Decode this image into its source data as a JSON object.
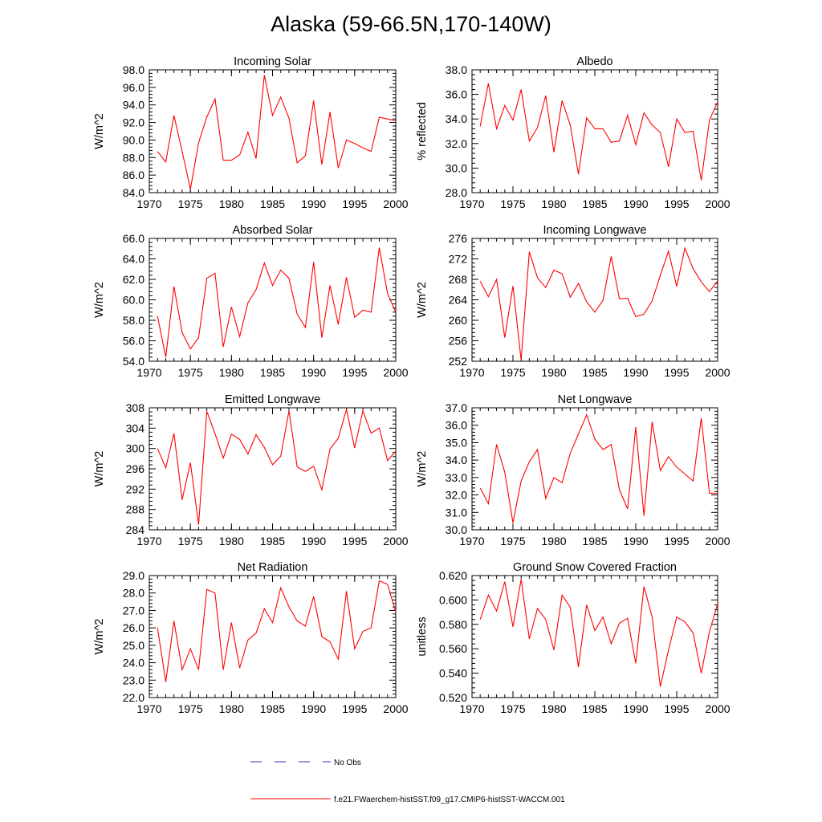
{
  "figure": {
    "title": "Alaska (59-66.5N,170-140W)"
  },
  "legend": {
    "items": [
      {
        "label": "No Obs",
        "color": "#3333cc",
        "style": "dashed"
      },
      {
        "label": "f.e21.FWaerchem-histSST.f09_g17.CMIP6-histSST-WACCM.001",
        "color": "#ff0000",
        "style": "solid"
      }
    ]
  },
  "chart_data": [
    {
      "type": "line",
      "title": "Incoming Solar",
      "xlabel": "",
      "ylabel": "W/m^2",
      "xlim": [
        1970,
        2000
      ],
      "ylim": [
        84,
        98
      ],
      "xticks": [
        1970,
        1975,
        1980,
        1985,
        1990,
        1995,
        2000
      ],
      "yticks": [
        "84.0",
        "86.0",
        "88.0",
        "90.0",
        "92.0",
        "94.0",
        "96.0",
        "98.0"
      ],
      "series": [
        {
          "color": "#ff0000",
          "x": [
            1971,
            1972,
            1973,
            1974,
            1975,
            1976,
            1977,
            1978,
            1979,
            1980,
            1981,
            1982,
            1983,
            1984,
            1985,
            1986,
            1987,
            1988,
            1989,
            1990,
            1991,
            1992,
            1993,
            1994,
            1995,
            1996,
            1997,
            1998,
            1999,
            2000
          ],
          "y": [
            88.7,
            87.5,
            92.8,
            88.7,
            84.4,
            89.7,
            92.6,
            94.7,
            87.7,
            87.7,
            88.3,
            90.9,
            87.9,
            97.4,
            92.8,
            94.9,
            92.5,
            87.4,
            88.2,
            94.5,
            87.2,
            93.2,
            86.8,
            90.0,
            89.6,
            89.1,
            88.7,
            92.6,
            92.4,
            92.2
          ]
        }
      ]
    },
    {
      "type": "line",
      "title": "Albedo",
      "xlabel": "",
      "ylabel": "% reflected",
      "xlim": [
        1970,
        2000
      ],
      "ylim": [
        28,
        38
      ],
      "xticks": [
        1970,
        1975,
        1980,
        1985,
        1990,
        1995,
        2000
      ],
      "yticks": [
        "28.0",
        "30.0",
        "32.0",
        "34.0",
        "36.0",
        "38.0"
      ],
      "series": [
        {
          "color": "#ff0000",
          "x": [
            1971,
            1972,
            1973,
            1974,
            1975,
            1976,
            1977,
            1978,
            1979,
            1980,
            1981,
            1982,
            1983,
            1984,
            1985,
            1986,
            1987,
            1988,
            1989,
            1990,
            1991,
            1992,
            1993,
            1994,
            1995,
            1996,
            1997,
            1998,
            1999,
            2000
          ],
          "y": [
            33.4,
            36.9,
            33.2,
            35.1,
            33.9,
            36.4,
            32.2,
            33.3,
            35.9,
            31.3,
            35.5,
            33.5,
            29.5,
            34.1,
            33.2,
            33.2,
            32.1,
            32.2,
            34.3,
            31.9,
            34.5,
            33.5,
            32.9,
            30.1,
            34.0,
            32.9,
            33.0,
            29.0,
            33.9,
            35.4
          ]
        }
      ]
    },
    {
      "type": "line",
      "title": "Absorbed Solar",
      "xlabel": "",
      "ylabel": "W/m^2",
      "xlim": [
        1970,
        2000
      ],
      "ylim": [
        54,
        66
      ],
      "xticks": [
        1970,
        1975,
        1980,
        1985,
        1990,
        1995,
        2000
      ],
      "yticks": [
        "54.0",
        "56.0",
        "58.0",
        "60.0",
        "62.0",
        "64.0",
        "66.0"
      ],
      "series": [
        {
          "color": "#ff0000",
          "x": [
            1971,
            1972,
            1973,
            1974,
            1975,
            1976,
            1977,
            1978,
            1979,
            1980,
            1981,
            1982,
            1983,
            1984,
            1985,
            1986,
            1987,
            1988,
            1989,
            1990,
            1991,
            1992,
            1993,
            1994,
            1995,
            1996,
            1997,
            1998,
            1999,
            2000
          ],
          "y": [
            58.4,
            54.4,
            61.3,
            56.8,
            55.2,
            56.3,
            62.1,
            62.6,
            55.4,
            59.3,
            56.4,
            59.7,
            61.0,
            63.6,
            61.4,
            62.9,
            62.1,
            58.6,
            57.3,
            63.7,
            56.3,
            61.4,
            57.6,
            62.2,
            58.3,
            59.0,
            58.8,
            65.1,
            60.6,
            58.8
          ]
        }
      ]
    },
    {
      "type": "line",
      "title": "Incoming Longwave",
      "xlabel": "",
      "ylabel": "W/m^2",
      "xlim": [
        1970,
        2000
      ],
      "ylim": [
        252,
        276
      ],
      "xticks": [
        1970,
        1975,
        1980,
        1985,
        1990,
        1995,
        2000
      ],
      "yticks": [
        "252",
        "256",
        "260",
        "264",
        "268",
        "272",
        "276"
      ],
      "series": [
        {
          "color": "#ff0000",
          "x": [
            1971,
            1972,
            1973,
            1974,
            1975,
            1976,
            1977,
            1978,
            1979,
            1980,
            1981,
            1982,
            1983,
            1984,
            1985,
            1986,
            1987,
            1988,
            1989,
            1990,
            1991,
            1992,
            1993,
            1994,
            1995,
            1996,
            1997,
            1998,
            1999,
            2000
          ],
          "y": [
            267.6,
            264.6,
            268.0,
            256.6,
            266.7,
            252.2,
            273.4,
            268.3,
            266.4,
            269.8,
            269.1,
            264.5,
            267.2,
            263.6,
            261.6,
            263.9,
            272.5,
            264.2,
            264.3,
            260.7,
            261.2,
            263.8,
            268.8,
            273.5,
            266.6,
            274.1,
            270.1,
            267.5,
            265.6,
            267.7
          ]
        }
      ]
    },
    {
      "type": "line",
      "title": "Emitted Longwave",
      "xlabel": "",
      "ylabel": "W/m^2",
      "xlim": [
        1970,
        2000
      ],
      "ylim": [
        284,
        308
      ],
      "xticks": [
        1970,
        1975,
        1980,
        1985,
        1990,
        1995,
        2000
      ],
      "yticks": [
        "284",
        "288",
        "292",
        "296",
        "300",
        "304",
        "308"
      ],
      "series": [
        {
          "color": "#ff0000",
          "x": [
            1971,
            1972,
            1973,
            1974,
            1975,
            1976,
            1977,
            1978,
            1979,
            1980,
            1981,
            1982,
            1983,
            1984,
            1985,
            1986,
            1987,
            1988,
            1989,
            1990,
            1991,
            1992,
            1993,
            1994,
            1995,
            1996,
            1997,
            1998,
            1999,
            2000
          ],
          "y": [
            300.0,
            296.2,
            303.0,
            289.9,
            297.2,
            285.0,
            307.3,
            302.9,
            298.1,
            302.8,
            301.8,
            298.9,
            302.7,
            300.2,
            296.8,
            298.5,
            307.4,
            296.4,
            295.5,
            296.5,
            291.9,
            299.9,
            302.0,
            307.7,
            300.1,
            307.4,
            303.0,
            304.0,
            297.6,
            299.5
          ]
        }
      ]
    },
    {
      "type": "line",
      "title": "Net Longwave",
      "xlabel": "",
      "ylabel": "W/m^2",
      "xlim": [
        1970,
        2000
      ],
      "ylim": [
        30,
        37
      ],
      "xticks": [
        1970,
        1975,
        1980,
        1985,
        1990,
        1995,
        2000
      ],
      "yticks": [
        "30.0",
        "31.0",
        "32.0",
        "33.0",
        "34.0",
        "35.0",
        "36.0",
        "37.0"
      ],
      "series": [
        {
          "color": "#ff0000",
          "x": [
            1971,
            1972,
            1973,
            1974,
            1975,
            1976,
            1977,
            1978,
            1979,
            1980,
            1981,
            1982,
            1983,
            1984,
            1985,
            1986,
            1987,
            1988,
            1989,
            1990,
            1991,
            1992,
            1993,
            1994,
            1995,
            1996,
            1997,
            1998,
            1999,
            2000
          ],
          "y": [
            32.4,
            31.5,
            34.9,
            33.3,
            30.4,
            32.8,
            33.9,
            34.6,
            31.8,
            33.0,
            32.7,
            34.4,
            35.5,
            36.6,
            35.2,
            34.6,
            34.9,
            32.3,
            31.2,
            35.9,
            30.8,
            36.2,
            33.4,
            34.2,
            33.6,
            33.2,
            32.8,
            36.4,
            32.1,
            32.1
          ]
        }
      ]
    },
    {
      "type": "line",
      "title": "Net Radiation",
      "xlabel": "",
      "ylabel": "W/m^2",
      "xlim": [
        1970,
        2000
      ],
      "ylim": [
        22,
        29
      ],
      "xticks": [
        1970,
        1975,
        1980,
        1985,
        1990,
        1995,
        2000
      ],
      "yticks": [
        "22.0",
        "23.0",
        "24.0",
        "25.0",
        "26.0",
        "27.0",
        "28.0",
        "29.0"
      ],
      "series": [
        {
          "color": "#ff0000",
          "x": [
            1971,
            1972,
            1973,
            1974,
            1975,
            1976,
            1977,
            1978,
            1979,
            1980,
            1981,
            1982,
            1983,
            1984,
            1985,
            1986,
            1987,
            1988,
            1989,
            1990,
            1991,
            1992,
            1993,
            1994,
            1995,
            1996,
            1997,
            1998,
            1999,
            2000
          ],
          "y": [
            26.0,
            22.9,
            26.4,
            23.6,
            24.8,
            23.6,
            28.2,
            28.0,
            23.6,
            26.3,
            23.7,
            25.3,
            25.7,
            27.1,
            26.3,
            28.3,
            27.2,
            26.4,
            26.1,
            27.8,
            25.5,
            25.2,
            24.2,
            28.1,
            24.8,
            25.8,
            26.0,
            28.7,
            28.5,
            26.9
          ]
        }
      ]
    },
    {
      "type": "line",
      "title": "Ground Snow Covered Fraction",
      "xlabel": "",
      "ylabel": "unitless",
      "xlim": [
        1970,
        2000
      ],
      "ylim": [
        0.52,
        0.62
      ],
      "xticks": [
        1970,
        1975,
        1980,
        1985,
        1990,
        1995,
        2000
      ],
      "yticks": [
        "0.520",
        "0.540",
        "0.560",
        "0.580",
        "0.600",
        "0.620"
      ],
      "series": [
        {
          "color": "#ff0000",
          "x": [
            1971,
            1972,
            1973,
            1974,
            1975,
            1976,
            1977,
            1978,
            1979,
            1980,
            1981,
            1982,
            1983,
            1984,
            1985,
            1986,
            1987,
            1988,
            1989,
            1990,
            1991,
            1992,
            1993,
            1994,
            1995,
            1996,
            1997,
            1998,
            1999,
            2000
          ],
          "y": [
            0.584,
            0.604,
            0.591,
            0.615,
            0.578,
            0.617,
            0.568,
            0.593,
            0.584,
            0.559,
            0.604,
            0.594,
            0.545,
            0.596,
            0.575,
            0.586,
            0.564,
            0.581,
            0.585,
            0.548,
            0.611,
            0.586,
            0.529,
            0.559,
            0.586,
            0.582,
            0.573,
            0.54,
            0.574,
            0.597
          ]
        }
      ]
    }
  ]
}
